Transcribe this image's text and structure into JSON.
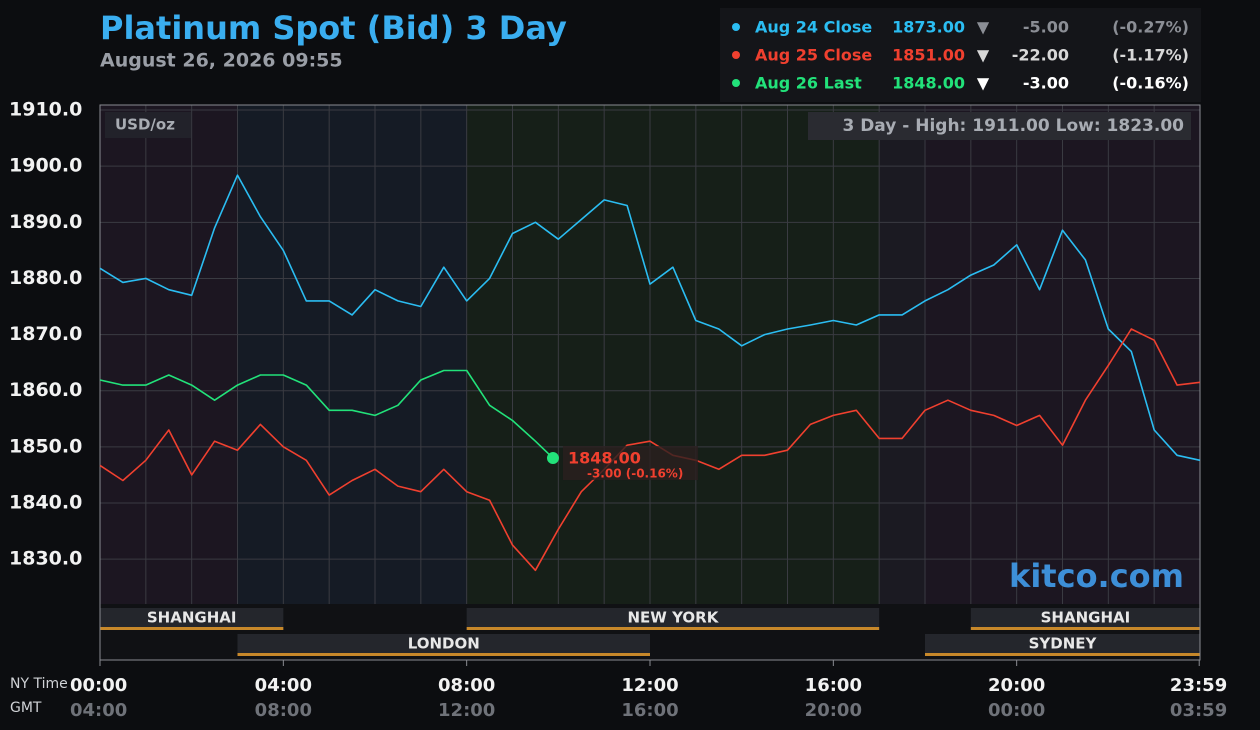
{
  "chart_data": {
    "type": "line",
    "title": "Platinum Spot (Bid) 3 Day",
    "subtitle": "August 26, 2026 09:55",
    "unit_label": "USD/oz",
    "range_note": "3 Day - High: 1911.00  Low: 1823.00",
    "watermark": "kitco.com",
    "x_axis_label": "NY Time",
    "x2_axis_label": "GMT",
    "xlim": [
      0,
      24
    ],
    "ylim": [
      1822,
      1910.9
    ],
    "yticks": [
      {
        "value": 1830,
        "label": "1830.0"
      },
      {
        "value": 1840,
        "label": "1840.0"
      },
      {
        "value": 1850,
        "label": "1850.0"
      },
      {
        "value": 1860,
        "label": "1860.0"
      },
      {
        "value": 1870,
        "label": "1870.0"
      },
      {
        "value": 1880,
        "label": "1880.0"
      },
      {
        "value": 1890,
        "label": "1890.0"
      },
      {
        "value": 1900,
        "label": "1900.0"
      },
      {
        "value": 1910,
        "label": "1910.0"
      }
    ],
    "xticks": [
      {
        "value": 0,
        "label": "00:00"
      },
      {
        "value": 4,
        "label": "04:00"
      },
      {
        "value": 8,
        "label": "08:00"
      },
      {
        "value": 12,
        "label": "12:00"
      },
      {
        "value": 16,
        "label": "16:00"
      },
      {
        "value": 20,
        "label": "20:00"
      },
      {
        "value": 23.983,
        "label": "23:59"
      }
    ],
    "x2ticks": [
      {
        "value": 0,
        "label": "04:00"
      },
      {
        "value": 4,
        "label": "08:00"
      },
      {
        "value": 8,
        "label": "12:00"
      },
      {
        "value": 12,
        "label": "16:00"
      },
      {
        "value": 16,
        "label": "20:00"
      },
      {
        "value": 20,
        "label": "00:00"
      },
      {
        "value": 23.983,
        "label": "03:59"
      }
    ],
    "xgrid_step": 1,
    "grid": true,
    "regions": [
      {
        "start": 0,
        "end": 3,
        "color": "#1c1621"
      },
      {
        "start": 3,
        "end": 8,
        "color": "#151b25"
      },
      {
        "start": 8,
        "end": 17,
        "color": "#161f18"
      },
      {
        "start": 18,
        "end": 24,
        "color": "#1c1621"
      }
    ],
    "sessions": [
      {
        "name": "SHANGHAI",
        "start": 0,
        "end": 4,
        "row": 0
      },
      {
        "name": "NEW YORK",
        "start": 8,
        "end": 17,
        "row": 0
      },
      {
        "name": "SHANGHAI",
        "start": 19,
        "end": 24,
        "row": 0
      },
      {
        "name": "LONDON",
        "start": 3,
        "end": 12,
        "row": 1
      },
      {
        "name": "SYDNEY",
        "start": 18,
        "end": 24,
        "row": 1
      }
    ],
    "series": [
      {
        "name": "Aug 24 Close",
        "color": "#2bbdf2",
        "last": "1873.00",
        "arrow": "▼",
        "change": "-5.00",
        "pct": "(-0.27%)",
        "x": [
          0,
          0.5,
          1,
          1.5,
          2,
          2.5,
          3,
          3.5,
          4,
          4.5,
          5,
          5.5,
          6,
          6.5,
          7,
          7.5,
          8,
          8.5,
          9,
          9.5,
          10,
          10.5,
          11,
          11.5,
          12,
          12.5,
          13,
          13.5,
          14,
          14.5,
          15,
          15.5,
          16,
          16.5,
          17,
          17.5,
          18,
          18.5,
          19,
          19.5,
          20,
          20.5,
          21,
          21.5,
          22,
          22.5,
          23,
          23.5,
          24
        ],
        "values": [
          1881.8,
          1879.3,
          1880,
          1878,
          1877,
          1889,
          1898.4,
          1891,
          1885,
          1876,
          1876,
          1873.5,
          1878,
          1876,
          1875,
          1882,
          1876,
          1880,
          1888,
          1890,
          1887,
          1890.5,
          1894,
          1893,
          1879,
          1882,
          1872.5,
          1871,
          1868,
          1870,
          1871,
          1871.7,
          1872.5,
          1871.7,
          1873.5,
          1873.5,
          1876,
          1878,
          1880.6,
          1882.4,
          1886,
          1878,
          1888.6,
          1883.3,
          1871,
          1867,
          1853,
          1848.5,
          1847.6
        ]
      },
      {
        "name": "Aug 25 Close",
        "color": "#f0402f",
        "last": "1851.00",
        "arrow": "▼",
        "change": "-22.00",
        "pct": "(-1.17%)",
        "x": [
          0,
          0.5,
          1,
          1.5,
          2,
          2.5,
          3,
          3.5,
          4,
          4.5,
          5,
          5.5,
          6,
          6.5,
          7,
          7.5,
          8,
          8.5,
          9,
          9.5,
          10,
          10.5,
          11,
          11.5,
          12,
          12.5,
          13,
          13.5,
          14,
          14.5,
          15,
          15.5,
          16,
          16.5,
          17,
          17.5,
          18,
          18.5,
          19,
          19.5,
          20,
          20.5,
          21,
          21.5,
          22,
          22.5,
          23,
          23.5,
          24
        ],
        "values": [
          1846.7,
          1844,
          1847.6,
          1853,
          1845,
          1851,
          1849.4,
          1854,
          1850,
          1847.6,
          1841.4,
          1844,
          1846,
          1843,
          1842,
          1846,
          1842,
          1840.5,
          1832.5,
          1828,
          1835.3,
          1842,
          1846,
          1850.3,
          1851,
          1848.5,
          1847.6,
          1846,
          1848.5,
          1848.5,
          1849.4,
          1854,
          1855.6,
          1856.5,
          1851.5,
          1851.5,
          1856.5,
          1858.3,
          1856.5,
          1855.6,
          1853.8,
          1855.6,
          1850.3,
          1858.3,
          1864.5,
          1871,
          1869,
          1861,
          1861.5
        ]
      },
      {
        "name": "Aug 26 Last",
        "color": "#22e27a",
        "last": "1848.00",
        "arrow": "▼",
        "change": "-3.00",
        "pct": "(-0.16%)",
        "x": [
          0,
          0.5,
          1,
          1.5,
          2,
          2.5,
          3,
          3.5,
          4,
          4.5,
          5,
          5.5,
          6,
          6.5,
          7,
          7.5,
          8,
          8.5,
          9,
          9.5,
          9.883
        ],
        "values": [
          1861.9,
          1861,
          1861,
          1862.8,
          1861,
          1858.3,
          1861,
          1862.8,
          1862.8,
          1861,
          1856.5,
          1856.5,
          1855.6,
          1857.4,
          1861.9,
          1863.6,
          1863.6,
          1857.4,
          1854.7,
          1851,
          1848
        ]
      }
    ],
    "last_point": {
      "x": 9.883,
      "value": 1848,
      "label": "1848.00",
      "change_label": "-3.00 (-0.16%)"
    }
  }
}
